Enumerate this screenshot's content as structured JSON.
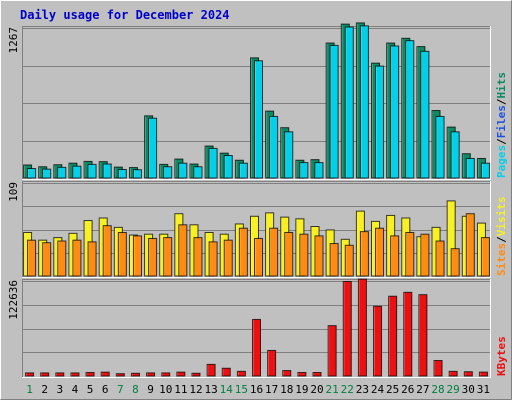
{
  "chart_data": {
    "type": "bar",
    "title": "Daily usage for December 2024",
    "categories": [
      "1",
      "2",
      "3",
      "4",
      "5",
      "6",
      "7",
      "8",
      "9",
      "10",
      "11",
      "12",
      "13",
      "14",
      "15",
      "16",
      "17",
      "18",
      "19",
      "20",
      "21",
      "22",
      "23",
      "24",
      "25",
      "26",
      "27",
      "28",
      "29",
      "30",
      "31"
    ],
    "weekend_days": [
      "1",
      "7",
      "8",
      "14",
      "15",
      "21",
      "22",
      "28",
      "29"
    ],
    "colors": {
      "title": "#0000cc",
      "hits": "#0c8a64",
      "files": "#2050e0",
      "pages": "#00d0e8",
      "visits": "#f8f020",
      "sites": "#ff8c10",
      "kbytes": "#ee1010",
      "weekday_label": "#000000",
      "weekend_label": "#008040"
    },
    "panels": [
      {
        "id": "hits",
        "max_label": "1267",
        "max": 1267,
        "legend": [
          {
            "name": "Pages",
            "color_key": "pages"
          },
          {
            "name": "Files",
            "color_key": "files"
          },
          {
            "name": "Hits",
            "color_key": "hits"
          }
        ],
        "series": [
          {
            "name": "Hits",
            "color_key": "hits",
            "values": [
              110,
              95,
              112,
              125,
              140,
              138,
              92,
              88,
              525,
              115,
              160,
              118,
              270,
              210,
              150,
              1015,
              565,
              425,
              150,
              155,
              1140,
              1300,
              1310,
              970,
              1140,
              1180,
              1110,
              570,
              430,
              205,
              165
            ]
          },
          {
            "name": "Pages",
            "color_key": "pages",
            "values": [
              80,
              75,
              90,
              100,
              115,
              118,
              72,
              70,
              505,
              95,
              125,
              95,
              250,
              190,
              125,
              990,
              520,
              390,
              130,
              130,
              1120,
              1275,
              1285,
              945,
              1115,
              1160,
              1070,
              520,
              390,
              165,
              125
            ]
          }
        ]
      },
      {
        "id": "visits",
        "max_label": "109",
        "max": 109,
        "legend": [
          {
            "name": "Sites",
            "color_key": "sites"
          },
          {
            "name": "Visits",
            "color_key": "visits"
          }
        ],
        "series": [
          {
            "name": "Visits",
            "color_key": "visits",
            "values": [
              51,
              42,
              45,
              50,
              65,
              68,
              57,
              48,
              49,
              49,
              73,
              60,
              51,
              49,
              61,
              70,
              74,
              69,
              67,
              58,
              54,
              43,
              76,
              64,
              71,
              68,
              46,
              57,
              88,
              70,
              62
            ]
          },
          {
            "name": "Sites",
            "color_key": "sites",
            "values": [
              42,
              39,
              41,
              42,
              40,
              59,
              51,
              47,
              44,
              45,
              60,
              45,
              40,
              42,
              56,
              44,
              56,
              51,
              49,
              47,
              38,
              36,
              52,
              56,
              47,
              51,
              49,
              41,
              32,
              73,
              45
            ]
          }
        ]
      },
      {
        "id": "kbytes",
        "max_label": "122636",
        "max": 122636,
        "legend": [
          {
            "name": "KBytes",
            "color_key": "kbytes"
          }
        ],
        "series": [
          {
            "name": "KBytes",
            "color_key": "kbytes",
            "values": [
              4000,
              4000,
              4000,
              4000,
              4500,
              5000,
              3000,
              3500,
              4000,
              4000,
              5000,
              3500,
              15000,
              10000,
              6000,
              73000,
              33000,
              7000,
              4500,
              4500,
              65000,
              122000,
              125000,
              90000,
              103000,
              108000,
              105000,
              20000,
              6000,
              5500,
              5000
            ]
          }
        ]
      }
    ]
  }
}
